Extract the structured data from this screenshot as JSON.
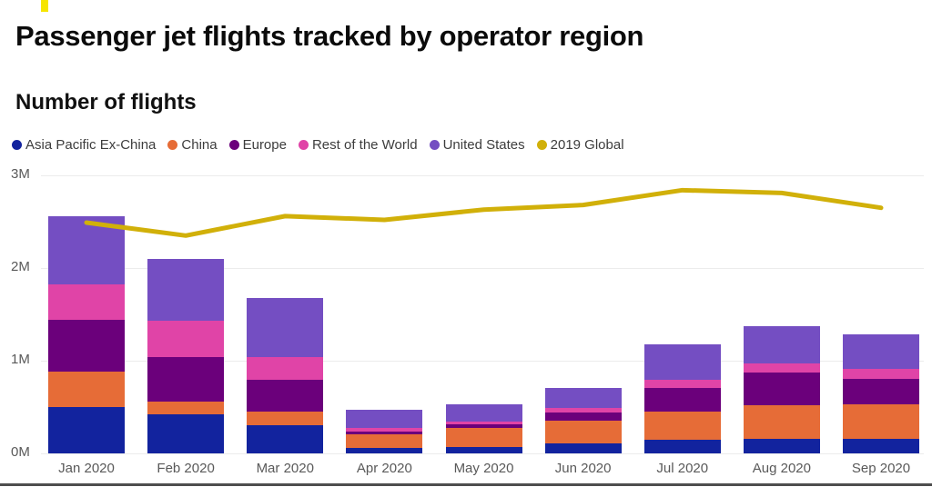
{
  "page": {
    "title": "Passenger jet flights tracked by operator region"
  },
  "chart_data": {
    "type": "bar",
    "stacked": true,
    "title": "Number of flights",
    "categories": [
      "Jan 2020",
      "Feb 2020",
      "Mar 2020",
      "Apr 2020",
      "May 2020",
      "Jun 2020",
      "Jul 2020",
      "Aug 2020",
      "Sep 2020"
    ],
    "series": [
      {
        "name": "Asia Pacific Ex-China",
        "type": "bar",
        "color": "#12239E",
        "values": [
          0.5,
          0.42,
          0.3,
          0.06,
          0.07,
          0.11,
          0.15,
          0.16,
          0.16
        ]
      },
      {
        "name": "China",
        "type": "bar",
        "color": "#E66C37",
        "values": [
          0.38,
          0.14,
          0.15,
          0.15,
          0.2,
          0.24,
          0.3,
          0.36,
          0.37
        ]
      },
      {
        "name": "Europe",
        "type": "bar",
        "color": "#6B007B",
        "values": [
          0.56,
          0.48,
          0.34,
          0.03,
          0.04,
          0.09,
          0.26,
          0.35,
          0.27
        ]
      },
      {
        "name": "Rest of the World",
        "type": "bar",
        "color": "#E044A7",
        "values": [
          0.38,
          0.39,
          0.25,
          0.03,
          0.03,
          0.05,
          0.08,
          0.1,
          0.11
        ]
      },
      {
        "name": "United States",
        "type": "bar",
        "color": "#744EC2",
        "values": [
          0.74,
          0.67,
          0.64,
          0.2,
          0.19,
          0.22,
          0.39,
          0.4,
          0.37
        ]
      },
      {
        "name": "2019 Global",
        "type": "line",
        "color": "#D1B009",
        "values": [
          2.49,
          2.35,
          2.56,
          2.52,
          2.63,
          2.68,
          2.84,
          2.81,
          2.65
        ]
      }
    ],
    "ylabel": "Number of flights",
    "unit": "M",
    "ylim": [
      0,
      3
    ],
    "yticks": [
      "0M",
      "1M",
      "2M",
      "3M"
    ],
    "grid": true,
    "legend_position": "top"
  }
}
